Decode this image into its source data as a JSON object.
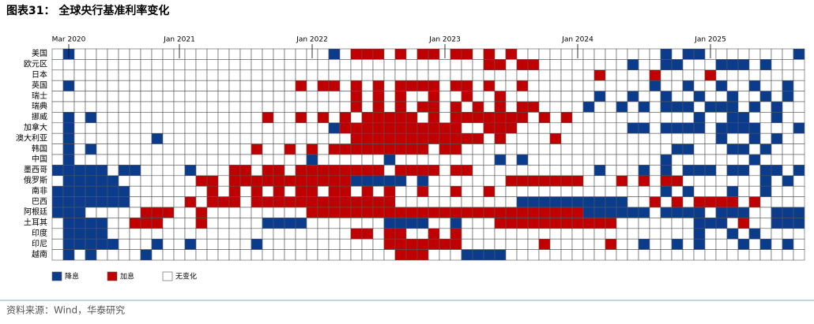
{
  "chart_data": {
    "type": "heatmap",
    "title": "图表31：  全球央行基准利率变化",
    "source": "资料来源：Wind，华泰研究",
    "x": [
      null,
      "Mar 2020",
      null,
      null,
      null,
      null,
      null,
      null,
      null,
      null,
      null,
      "Jan 2021",
      null,
      null,
      null,
      null,
      null,
      null,
      null,
      null,
      null,
      null,
      null,
      "Jan 2022",
      null,
      null,
      null,
      null,
      null,
      null,
      null,
      null,
      null,
      null,
      null,
      "Jan 2023",
      null,
      null,
      null,
      null,
      null,
      null,
      null,
      null,
      null,
      null,
      null,
      "Jan 2024",
      null,
      null,
      null,
      null,
      null,
      null,
      null,
      null,
      null,
      null,
      null,
      "Jan 2025",
      null,
      null,
      null,
      null,
      null,
      null,
      null,
      null
    ],
    "rows": [
      "美国",
      "欧元区",
      "日本",
      "英国",
      "瑞士",
      "瑞典",
      "挪威",
      "加拿大",
      "澳大利亚",
      "韩国",
      "中国",
      "墨西哥",
      "俄罗斯",
      "南非",
      "巴西",
      "阿根廷",
      "土耳其",
      "印度",
      "印尼",
      "越南"
    ],
    "color_scale": [
      {
        "value": -1,
        "label": "降息",
        "color": "#0b3c8c"
      },
      {
        "value": 1,
        "label": "加息",
        "color": "#c00000"
      },
      {
        "value": 0,
        "label": "无变化",
        "color": "#ffffff"
      }
    ],
    "values": [
      [
        0,
        -1,
        0,
        0,
        0,
        0,
        0,
        0,
        0,
        0,
        0,
        0,
        0,
        0,
        0,
        0,
        0,
        0,
        0,
        0,
        0,
        0,
        0,
        0,
        0,
        -1,
        0,
        1,
        1,
        1,
        0,
        1,
        0,
        1,
        1,
        0,
        1,
        1,
        0,
        1,
        0,
        1,
        0,
        0,
        0,
        0,
        0,
        0,
        0,
        0,
        0,
        0,
        0,
        0,
        0,
        -1,
        0,
        -1,
        -1,
        0,
        0,
        0,
        0,
        0,
        0,
        0,
        0,
        -1
      ],
      [
        0,
        0,
        0,
        0,
        0,
        0,
        0,
        0,
        0,
        0,
        0,
        0,
        0,
        0,
        0,
        0,
        0,
        0,
        0,
        0,
        0,
        0,
        0,
        0,
        0,
        0,
        0,
        0,
        0,
        0,
        0,
        0,
        0,
        0,
        0,
        0,
        0,
        0,
        0,
        1,
        1,
        0,
        1,
        1,
        0,
        0,
        0,
        0,
        0,
        0,
        0,
        0,
        -1,
        0,
        0,
        -1,
        -1,
        0,
        0,
        0,
        -1,
        -1,
        -1,
        0,
        -1,
        0,
        0,
        0
      ],
      [
        0,
        0,
        0,
        0,
        0,
        0,
        0,
        0,
        0,
        0,
        0,
        0,
        0,
        0,
        0,
        0,
        0,
        0,
        0,
        0,
        0,
        0,
        0,
        0,
        0,
        0,
        0,
        0,
        0,
        0,
        0,
        0,
        0,
        0,
        0,
        0,
        0,
        0,
        0,
        0,
        0,
        0,
        0,
        0,
        0,
        0,
        0,
        0,
        0,
        1,
        0,
        0,
        0,
        0,
        1,
        0,
        0,
        0,
        0,
        1,
        0,
        0,
        0,
        0,
        0,
        0,
        0,
        0
      ],
      [
        0,
        -1,
        0,
        0,
        0,
        0,
        0,
        0,
        0,
        0,
        0,
        0,
        0,
        0,
        0,
        0,
        0,
        0,
        0,
        0,
        0,
        0,
        1,
        0,
        1,
        1,
        0,
        1,
        0,
        1,
        0,
        1,
        1,
        1,
        1,
        0,
        1,
        1,
        0,
        1,
        0,
        0,
        1,
        0,
        0,
        0,
        0,
        0,
        0,
        0,
        0,
        0,
        0,
        0,
        -1,
        0,
        0,
        -1,
        0,
        0,
        -1,
        0,
        0,
        -1,
        0,
        0,
        -1,
        0
      ],
      [
        0,
        0,
        0,
        0,
        0,
        0,
        0,
        0,
        0,
        0,
        0,
        0,
        0,
        0,
        0,
        0,
        0,
        0,
        0,
        0,
        0,
        0,
        0,
        0,
        0,
        0,
        0,
        1,
        0,
        1,
        0,
        1,
        0,
        0,
        1,
        0,
        0,
        1,
        0,
        0,
        1,
        0,
        0,
        0,
        0,
        0,
        0,
        0,
        0,
        -1,
        0,
        0,
        -1,
        0,
        0,
        -1,
        0,
        0,
        -1,
        0,
        0,
        -1,
        0,
        0,
        -1,
        0,
        -1,
        0
      ],
      [
        0,
        0,
        0,
        0,
        0,
        0,
        0,
        0,
        0,
        0,
        0,
        0,
        0,
        0,
        0,
        0,
        0,
        0,
        0,
        0,
        0,
        0,
        0,
        0,
        0,
        0,
        0,
        1,
        0,
        1,
        0,
        1,
        0,
        1,
        1,
        0,
        1,
        0,
        1,
        0,
        1,
        0,
        1,
        1,
        0,
        0,
        0,
        0,
        -1,
        0,
        0,
        -1,
        0,
        -1,
        0,
        -1,
        -1,
        -1,
        0,
        -1,
        -1,
        -1,
        0,
        -1,
        0,
        -1,
        0,
        0
      ],
      [
        0,
        -1,
        0,
        -1,
        0,
        0,
        0,
        0,
        0,
        0,
        0,
        0,
        0,
        0,
        0,
        0,
        0,
        0,
        0,
        1,
        0,
        0,
        1,
        0,
        1,
        0,
        1,
        0,
        1,
        1,
        1,
        1,
        1,
        0,
        1,
        0,
        1,
        1,
        1,
        1,
        1,
        1,
        1,
        0,
        1,
        0,
        1,
        0,
        0,
        0,
        0,
        0,
        0,
        0,
        0,
        0,
        0,
        0,
        -1,
        0,
        0,
        -1,
        -1,
        0,
        0,
        -1,
        0,
        0
      ],
      [
        0,
        -1,
        0,
        0,
        0,
        0,
        0,
        0,
        0,
        0,
        0,
        0,
        0,
        0,
        0,
        0,
        0,
        0,
        0,
        0,
        0,
        0,
        0,
        0,
        0,
        -1,
        1,
        1,
        1,
        1,
        1,
        1,
        1,
        1,
        1,
        1,
        1,
        0,
        0,
        1,
        1,
        1,
        0,
        0,
        0,
        0,
        0,
        0,
        0,
        0,
        0,
        0,
        -1,
        -1,
        0,
        -1,
        -1,
        -1,
        -1,
        0,
        -1,
        -1,
        -1,
        -1,
        0,
        0,
        0,
        -1
      ],
      [
        0,
        -1,
        0,
        0,
        0,
        0,
        0,
        0,
        0,
        -1,
        0,
        0,
        0,
        0,
        0,
        0,
        0,
        0,
        0,
        0,
        0,
        0,
        0,
        0,
        0,
        0,
        0,
        1,
        1,
        1,
        1,
        1,
        1,
        1,
        1,
        1,
        1,
        1,
        1,
        0,
        1,
        0,
        0,
        0,
        0,
        1,
        0,
        0,
        0,
        0,
        0,
        0,
        0,
        0,
        0,
        0,
        0,
        0,
        0,
        0,
        -1,
        0,
        0,
        -1,
        0,
        -1,
        0,
        0
      ],
      [
        0,
        -1,
        0,
        -1,
        0,
        0,
        0,
        0,
        0,
        0,
        0,
        0,
        0,
        0,
        0,
        0,
        0,
        0,
        1,
        0,
        0,
        1,
        0,
        1,
        0,
        1,
        1,
        1,
        1,
        1,
        1,
        1,
        1,
        1,
        0,
        1,
        1,
        0,
        0,
        0,
        0,
        0,
        0,
        0,
        0,
        0,
        0,
        0,
        0,
        0,
        0,
        0,
        0,
        0,
        0,
        0,
        -1,
        -1,
        0,
        0,
        0,
        -1,
        -1,
        0,
        -1,
        0,
        0,
        0
      ],
      [
        0,
        -1,
        0,
        0,
        0,
        0,
        0,
        0,
        0,
        0,
        0,
        0,
        0,
        0,
        0,
        0,
        0,
        0,
        0,
        0,
        0,
        0,
        0,
        -1,
        0,
        0,
        0,
        0,
        0,
        0,
        -1,
        0,
        0,
        0,
        0,
        0,
        0,
        0,
        0,
        0,
        -1,
        0,
        -1,
        0,
        0,
        0,
        0,
        0,
        0,
        0,
        0,
        0,
        0,
        0,
        0,
        -1,
        0,
        0,
        0,
        0,
        0,
        0,
        0,
        -1,
        0,
        0,
        0,
        0
      ],
      [
        -1,
        -1,
        -1,
        -1,
        -1,
        0,
        -1,
        -1,
        0,
        0,
        0,
        0,
        -1,
        0,
        0,
        0,
        1,
        1,
        0,
        1,
        1,
        0,
        1,
        1,
        1,
        1,
        1,
        1,
        1,
        1,
        0,
        1,
        1,
        1,
        1,
        0,
        1,
        1,
        0,
        0,
        0,
        0,
        0,
        0,
        0,
        0,
        0,
        0,
        0,
        -1,
        0,
        0,
        0,
        -1,
        0,
        -1,
        0,
        -1,
        -1,
        -1,
        0,
        -1,
        -1,
        0,
        -1,
        -1,
        0,
        -1
      ],
      [
        0,
        -1,
        -1,
        -1,
        -1,
        -1,
        0,
        0,
        0,
        0,
        0,
        0,
        0,
        1,
        1,
        0,
        1,
        1,
        1,
        1,
        1,
        1,
        1,
        1,
        1,
        1,
        1,
        -1,
        -1,
        -1,
        -1,
        -1,
        0,
        -1,
        0,
        0,
        0,
        0,
        0,
        0,
        0,
        1,
        1,
        1,
        1,
        1,
        1,
        1,
        0,
        0,
        0,
        1,
        0,
        1,
        0,
        1,
        1,
        0,
        0,
        0,
        0,
        0,
        0,
        0,
        -1,
        0,
        -1,
        0
      ],
      [
        -1,
        -1,
        -1,
        -1,
        -1,
        -1,
        -1,
        0,
        0,
        0,
        0,
        0,
        0,
        0,
        1,
        0,
        1,
        0,
        1,
        0,
        1,
        0,
        1,
        1,
        0,
        1,
        1,
        0,
        1,
        0,
        1,
        0,
        0,
        1,
        0,
        0,
        1,
        0,
        0,
        1,
        0,
        0,
        0,
        0,
        0,
        0,
        0,
        0,
        0,
        0,
        0,
        0,
        0,
        0,
        0,
        -1,
        0,
        -1,
        0,
        0,
        0,
        -1,
        0,
        0,
        -1,
        0,
        0,
        0
      ],
      [
        -1,
        -1,
        -1,
        -1,
        -1,
        -1,
        -1,
        0,
        0,
        0,
        0,
        0,
        1,
        0,
        1,
        1,
        1,
        0,
        1,
        1,
        1,
        1,
        1,
        1,
        1,
        1,
        1,
        1,
        1,
        1,
        1,
        0,
        0,
        0,
        0,
        0,
        0,
        0,
        0,
        0,
        0,
        0,
        -1,
        -1,
        -1,
        -1,
        -1,
        -1,
        -1,
        -1,
        -1,
        -1,
        0,
        0,
        1,
        0,
        1,
        0,
        1,
        1,
        1,
        1,
        0,
        1,
        0,
        0,
        0,
        0
      ],
      [
        -1,
        -1,
        -1,
        0,
        0,
        0,
        0,
        0,
        1,
        1,
        1,
        0,
        0,
        1,
        0,
        0,
        0,
        0,
        0,
        0,
        0,
        0,
        0,
        1,
        1,
        1,
        1,
        1,
        1,
        1,
        1,
        1,
        1,
        1,
        1,
        1,
        1,
        1,
        1,
        1,
        1,
        1,
        1,
        1,
        1,
        1,
        1,
        1,
        -1,
        -1,
        -1,
        -1,
        -1,
        -1,
        0,
        -1,
        -1,
        -1,
        -1,
        0,
        -1,
        -1,
        -1,
        0,
        0,
        -1,
        -1,
        -1
      ],
      [
        0,
        -1,
        -1,
        -1,
        -1,
        0,
        0,
        1,
        1,
        1,
        0,
        0,
        0,
        1,
        0,
        0,
        0,
        0,
        0,
        -1,
        -1,
        -1,
        -1,
        0,
        0,
        0,
        0,
        0,
        0,
        0,
        -1,
        -1,
        -1,
        -1,
        0,
        0,
        -1,
        0,
        0,
        0,
        1,
        1,
        1,
        1,
        1,
        1,
        1,
        1,
        1,
        1,
        1,
        0,
        0,
        0,
        0,
        0,
        0,
        0,
        -1,
        -1,
        -1,
        0,
        1,
        0,
        0,
        -1,
        -1,
        -1
      ],
      [
        0,
        -1,
        -1,
        -1,
        -1,
        0,
        0,
        0,
        0,
        0,
        0,
        0,
        0,
        0,
        0,
        0,
        0,
        0,
        0,
        0,
        0,
        0,
        0,
        0,
        0,
        0,
        0,
        1,
        1,
        0,
        1,
        1,
        0,
        0,
        1,
        0,
        1,
        0,
        0,
        0,
        0,
        0,
        0,
        0,
        0,
        0,
        0,
        0,
        0,
        0,
        0,
        0,
        0,
        0,
        0,
        0,
        0,
        0,
        -1,
        0,
        0,
        -1,
        0,
        -1,
        0,
        0,
        0,
        0
      ],
      [
        0,
        -1,
        -1,
        -1,
        -1,
        -1,
        0,
        0,
        0,
        -1,
        0,
        0,
        -1,
        0,
        0,
        0,
        0,
        0,
        -1,
        0,
        0,
        0,
        0,
        0,
        0,
        0,
        0,
        0,
        0,
        0,
        1,
        1,
        1,
        1,
        1,
        1,
        1,
        0,
        0,
        0,
        0,
        0,
        0,
        0,
        1,
        0,
        0,
        0,
        0,
        0,
        1,
        0,
        0,
        -1,
        0,
        0,
        -1,
        0,
        -1,
        0,
        0,
        0,
        -1,
        0,
        -1,
        0,
        -1,
        0
      ],
      [
        0,
        -1,
        0,
        -1,
        0,
        0,
        0,
        0,
        -1,
        0,
        0,
        0,
        0,
        0,
        0,
        0,
        0,
        0,
        0,
        0,
        0,
        0,
        0,
        0,
        0,
        0,
        0,
        0,
        0,
        0,
        0,
        1,
        1,
        1,
        0,
        0,
        0,
        -1,
        -1,
        -1,
        -1,
        0,
        0,
        0,
        0,
        0,
        0,
        0,
        0,
        0,
        0,
        0,
        0,
        0,
        0,
        0,
        0,
        0,
        0,
        0,
        0,
        0,
        0,
        0,
        0,
        0,
        0,
        0
      ]
    ]
  }
}
